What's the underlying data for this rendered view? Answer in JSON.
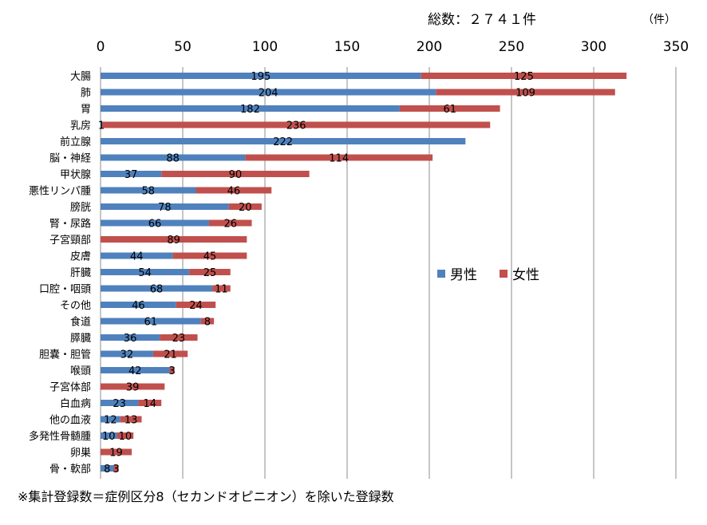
{
  "header": {
    "total_label": "総数：２７４１件",
    "unit_label": "（件）"
  },
  "footnote": "※集計登録数＝症例区分8（セカンドオピニオン）を除いた登録数",
  "chart_data": {
    "type": "bar",
    "orientation": "horizontal",
    "stacked": true,
    "title": "総数：２７４１件",
    "xlabel": "（件）",
    "ylabel": "",
    "xlim": [
      0,
      350
    ],
    "xticks": [
      0,
      50,
      100,
      150,
      200,
      250,
      300,
      350
    ],
    "grid": true,
    "legend_position": "right-middle",
    "categories": [
      "大腸",
      "肺",
      "胃",
      "乳房",
      "前立腺",
      "脳・神経",
      "甲状腺",
      "悪性リンパ腫",
      "膀胱",
      "腎・尿路",
      "子宮頸部",
      "皮膚",
      "肝臓",
      "口腔・咽頭",
      "その他",
      "食道",
      "膵臓",
      "胆嚢・胆管",
      "喉頭",
      "子宮体部",
      "白血病",
      "他の血液",
      "多発性骨髄腫",
      "卵巣",
      "骨・軟部"
    ],
    "series": [
      {
        "name": "男性",
        "color": "#4f81bd",
        "values": [
          195,
          204,
          182,
          1,
          222,
          88,
          37,
          58,
          78,
          66,
          null,
          44,
          54,
          68,
          46,
          61,
          36,
          32,
          42,
          null,
          23,
          12,
          10,
          null,
          8
        ]
      },
      {
        "name": "女性",
        "color": "#c0504d",
        "values": [
          125,
          109,
          61,
          236,
          null,
          114,
          90,
          46,
          20,
          26,
          89,
          45,
          25,
          11,
          24,
          8,
          23,
          21,
          3,
          39,
          14,
          13,
          10,
          19,
          3
        ]
      }
    ]
  }
}
